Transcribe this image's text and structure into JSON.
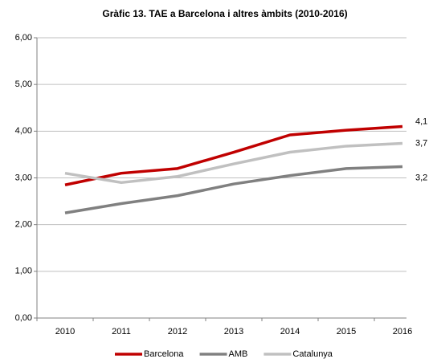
{
  "chart_data": {
    "type": "line",
    "title": "Gràfic 13. TAE a Barcelona i altres àmbits (2010-2016)",
    "categories": [
      "2010",
      "2011",
      "2012",
      "2013",
      "2014",
      "2015",
      "2016"
    ],
    "series": [
      {
        "name": "Barcelona",
        "color": "#c00000",
        "values": [
          2.85,
          3.1,
          3.2,
          3.55,
          3.92,
          4.02,
          4.1
        ],
        "value_labels": [
          null,
          null,
          null,
          null,
          null,
          null,
          "4,1"
        ]
      },
      {
        "name": "AMB",
        "color": "#808080",
        "values": [
          2.25,
          2.45,
          2.62,
          2.87,
          3.05,
          3.2,
          3.24
        ],
        "value_labels": [
          null,
          null,
          null,
          null,
          null,
          null,
          "3,2"
        ]
      },
      {
        "name": "Catalunya",
        "color": "#c0c0c0",
        "values": [
          3.1,
          2.9,
          3.03,
          3.3,
          3.55,
          3.68,
          3.74
        ],
        "value_labels": [
          null,
          null,
          null,
          null,
          null,
          null,
          "3,7"
        ]
      }
    ],
    "ylim": [
      0,
      6
    ],
    "yticks": [
      {
        "value": 0,
        "label": "0,00"
      },
      {
        "value": 1,
        "label": "1,00"
      },
      {
        "value": 2,
        "label": "2,00"
      },
      {
        "value": 3,
        "label": "3,00"
      },
      {
        "value": 4,
        "label": "4,00"
      },
      {
        "value": 5,
        "label": "5,00"
      },
      {
        "value": 6,
        "label": "6,00"
      }
    ],
    "grid": true,
    "legend": "bottom"
  }
}
